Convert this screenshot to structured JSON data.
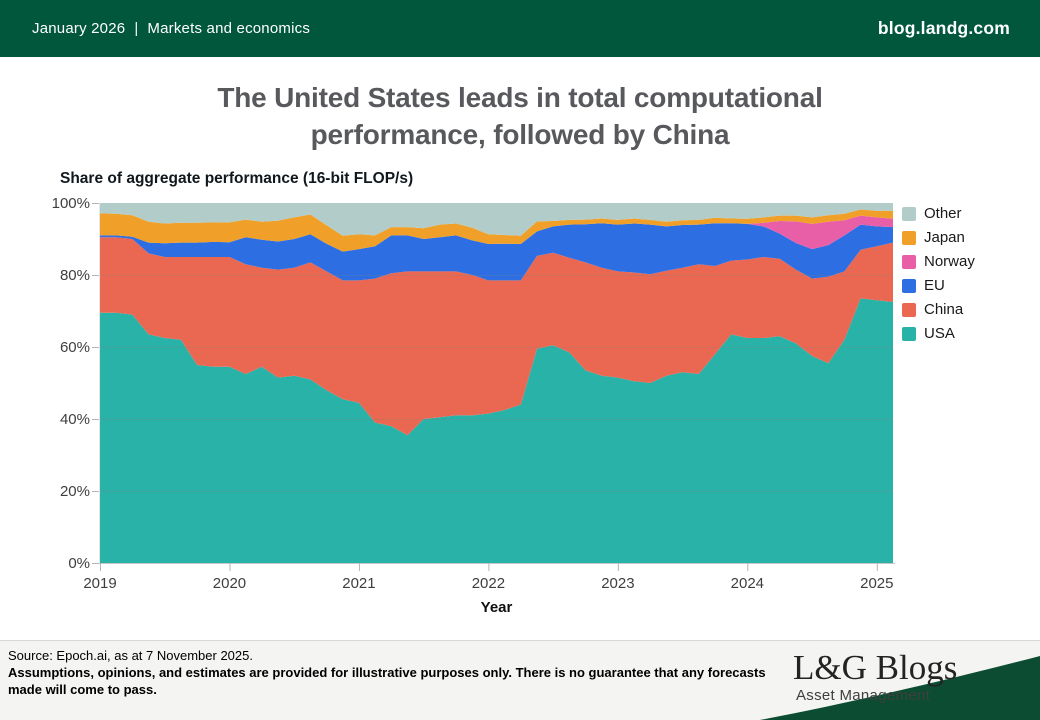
{
  "header": {
    "date": "January 2026",
    "separator": "|",
    "section": "Markets and economics",
    "site": "blog.landg.com"
  },
  "title": {
    "line1": "The United States leads in total computational",
    "line2": "performance, followed by China"
  },
  "chart_data": {
    "type": "area",
    "stacked": true,
    "title": "The United States leads in total computational performance, followed by China",
    "subtitle": "Share of aggregate performance (16-bit FLOP/s)",
    "xlabel": "Year",
    "ylabel": "",
    "ylim": [
      0,
      100
    ],
    "xlim": [
      2019,
      2025.125
    ],
    "grid": true,
    "legend_position": "right",
    "y_ticks": [
      "0%",
      "20%",
      "40%",
      "60%",
      "80%",
      "100%"
    ],
    "y_tick_values": [
      0,
      20,
      40,
      60,
      80,
      100
    ],
    "x_ticks": [
      2019,
      2020,
      2021,
      2022,
      2023,
      2024,
      2025
    ],
    "x": [
      2019.0,
      2019.125,
      2019.25,
      2019.375,
      2019.5,
      2019.625,
      2019.75,
      2019.875,
      2020.0,
      2020.125,
      2020.25,
      2020.375,
      2020.5,
      2020.625,
      2020.75,
      2020.875,
      2021.0,
      2021.125,
      2021.25,
      2021.375,
      2021.5,
      2021.625,
      2021.75,
      2021.875,
      2022.0,
      2022.125,
      2022.25,
      2022.375,
      2022.5,
      2022.625,
      2022.75,
      2022.875,
      2023.0,
      2023.125,
      2023.25,
      2023.375,
      2023.5,
      2023.625,
      2023.75,
      2023.875,
      2024.0,
      2024.125,
      2024.25,
      2024.375,
      2024.5,
      2024.625,
      2024.75,
      2024.875,
      2025.0,
      2025.125
    ],
    "legend_order": [
      "Other",
      "Japan",
      "Norway",
      "EU",
      "China",
      "USA"
    ],
    "series": [
      {
        "name": "USA",
        "color": "#29B2A8",
        "values": [
          69.5,
          69.5,
          69,
          63.5,
          62.5,
          62,
          55,
          54.5,
          54.5,
          52.5,
          54.5,
          51.5,
          52,
          51,
          48,
          45.5,
          44.5,
          39,
          38,
          35.5,
          40,
          40.5,
          41,
          41,
          41.5,
          42.5,
          44,
          59.5,
          60.5,
          58.5,
          53.5,
          52,
          51.5,
          50.5,
          50,
          52,
          53,
          52.5,
          58,
          63.5,
          62.5,
          62.5,
          63,
          61,
          57.5,
          55.5,
          62,
          73.5,
          73,
          72.5
        ]
      },
      {
        "name": "China",
        "color": "#EA6852",
        "values": [
          21,
          21,
          21,
          22.5,
          22.5,
          23,
          30,
          30.5,
          30.5,
          30.5,
          27.5,
          30,
          30,
          32.5,
          33,
          33,
          34,
          40,
          42.5,
          45.5,
          41,
          40.5,
          40,
          39,
          37,
          36,
          34.5,
          25.8,
          25.7,
          26.3,
          30,
          30,
          29.5,
          30.2,
          30.2,
          29.2,
          29,
          30.5,
          24.5,
          20.5,
          21.8,
          22.5,
          21.5,
          20.5,
          21.5,
          24,
          19,
          13.5,
          15,
          16.5
        ]
      },
      {
        "name": "EU",
        "color": "#2D6FE3",
        "values": [
          0.5,
          0.5,
          0.6,
          3,
          3.8,
          4,
          4,
          4.2,
          4.1,
          7.5,
          7.8,
          7.8,
          8,
          7.8,
          7.7,
          8,
          8.7,
          9,
          10.5,
          10,
          9,
          9.5,
          10,
          9.6,
          10.1,
          10.2,
          10.1,
          6.8,
          7.3,
          9.2,
          10.6,
          12.4,
          13,
          13.6,
          13.8,
          12.3,
          11.9,
          11,
          11.9,
          10.4,
          9.9,
          8.5,
          7,
          7.4,
          8.2,
          8.8,
          10,
          7,
          5.5,
          4.3
        ]
      },
      {
        "name": "Norway",
        "color": "#E85FA8",
        "values": [
          0,
          0,
          0,
          0,
          0,
          0,
          0,
          0,
          0,
          0,
          0,
          0,
          0,
          0,
          0,
          0,
          0,
          0,
          0,
          0,
          0,
          0,
          0,
          0,
          0,
          0,
          0,
          0,
          0,
          0,
          0,
          0,
          0,
          0,
          0,
          0,
          0,
          0,
          0,
          0,
          0,
          1,
          3.5,
          6,
          7,
          6.5,
          4.2,
          2.5,
          2.5,
          2.3
        ]
      },
      {
        "name": "Japan",
        "color": "#F0A028",
        "values": [
          6.1,
          6,
          6,
          5.8,
          5.5,
          5.5,
          5.5,
          5.4,
          5.5,
          4.9,
          5,
          5.8,
          6,
          5.5,
          5.1,
          4.4,
          4.1,
          3,
          2.3,
          2.3,
          3,
          3.5,
          3.3,
          3.5,
          2.7,
          2.4,
          2.3,
          2.8,
          1.5,
          1.3,
          1.3,
          1.3,
          1.3,
          1.4,
          1.3,
          1.3,
          1.3,
          1.3,
          1.5,
          1.3,
          1.4,
          1.5,
          1.5,
          1.6,
          1.8,
          1.8,
          1.8,
          1.7,
          1.8,
          2.2
        ]
      },
      {
        "name": "Other",
        "color": "#B2CCC9",
        "remainder": true,
        "values": [
          2.9,
          3,
          3.4,
          5.2,
          5.7,
          5.5,
          5.5,
          5.4,
          5.4,
          4.6,
          5.2,
          4.9,
          4,
          3.2,
          6.2,
          9.1,
          8.7,
          9,
          6.7,
          6.7,
          7,
          6,
          5.7,
          6.9,
          8.7,
          8.9,
          9.1,
          5.1,
          5,
          4.7,
          4.6,
          4.3,
          4.7,
          4.3,
          4.7,
          5.2,
          4.8,
          4.7,
          4.1,
          4.3,
          4.4,
          4,
          3.5,
          3.5,
          4,
          3.4,
          3,
          1.8,
          2.2,
          2.2
        ]
      }
    ]
  },
  "footer": {
    "source": "Source: Epoch.ai, as at 7 November 2025.",
    "disclaimer": "Assumptions, opinions, and estimates are provided for illustrative purposes only. There is no guarantee that any forecasts made will come to pass."
  },
  "logo": {
    "main": "L&G Blogs",
    "sub": "Asset Management"
  },
  "colors": {
    "brand_green": "#00573C",
    "swoosh_green": "#0B4C33",
    "title_gray": "#58595C",
    "usa": "#29B2A8",
    "china": "#EA6852",
    "eu": "#2D6FE3",
    "norway": "#E85FA8",
    "japan": "#F0A028",
    "other": "#B2CCC9"
  }
}
